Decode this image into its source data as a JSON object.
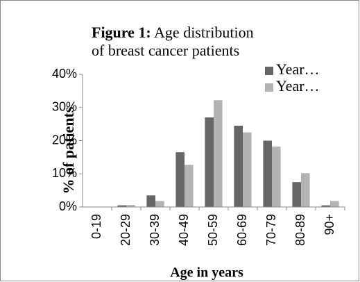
{
  "chart_data": {
    "type": "bar",
    "title_bold": "Figure 1:",
    "title": "Age distribution of breast cancer patients",
    "y_axis_label": "% of patients",
    "x_axis_label": "Age in years",
    "categories": [
      "0-19",
      "20-29",
      "30-39",
      "40-49",
      "50-59",
      "60-69",
      "70-79",
      "80-89",
      "90+"
    ],
    "series": [
      {
        "name": "Year…",
        "color": "#666666",
        "values": [
          0,
          0.5,
          3.5,
          16.5,
          27,
          24.5,
          20,
          7.5,
          0.5
        ]
      },
      {
        "name": "Year…",
        "color": "#b3b3b3",
        "values": [
          0,
          0.6,
          1.8,
          12.7,
          32.2,
          22.5,
          18.2,
          10.2,
          1.8
        ]
      }
    ],
    "ylim": [
      0,
      40
    ],
    "yticks": [
      {
        "value": 0,
        "label": "0%"
      },
      {
        "value": 10,
        "label": "10%"
      },
      {
        "value": 20,
        "label": "20%"
      },
      {
        "value": 30,
        "label": "30%"
      },
      {
        "value": 40,
        "label": "40%"
      }
    ],
    "grid": false,
    "legend": "top-right"
  }
}
